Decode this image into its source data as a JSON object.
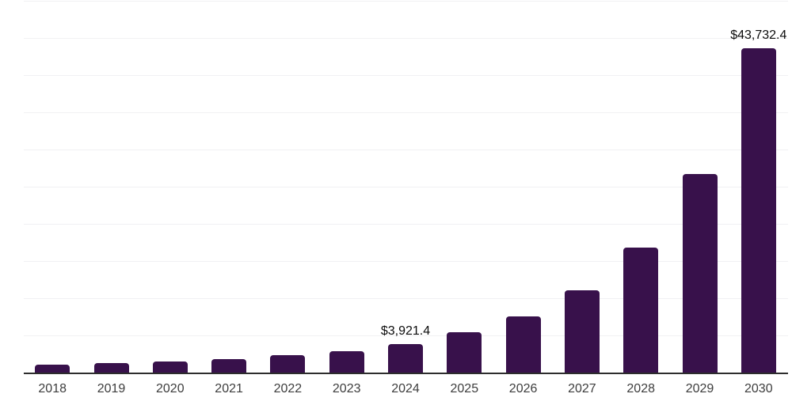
{
  "chart_data": {
    "type": "bar",
    "title": "",
    "xlabel": "",
    "ylabel": "",
    "categories": [
      "2018",
      "2019",
      "2020",
      "2021",
      "2022",
      "2023",
      "2024",
      "2025",
      "2026",
      "2027",
      "2028",
      "2029",
      "2030"
    ],
    "values": [
      1200,
      1400,
      1550,
      1950,
      2400,
      2980,
      3921.4,
      5550,
      7650,
      11150,
      16950,
      26800,
      43732.4
    ],
    "point_labels": [
      "",
      "",
      "",
      "",
      "",
      "",
      "$3,921.4",
      "",
      "",
      "",
      "",
      "",
      "$43,732.4"
    ],
    "ylim": [
      0,
      50000
    ],
    "grid_step": 5000,
    "grid": "horizontal-only",
    "legend_position": "none",
    "y_tick_labels_visible": false,
    "colors": {
      "bar": "#38114b",
      "axis_line": "#2d2d2d",
      "gridline": "#f1f1f3",
      "x_tick_label": "#3d3d3d",
      "data_label": "#0b0b0b",
      "background": "#ffffff"
    }
  }
}
